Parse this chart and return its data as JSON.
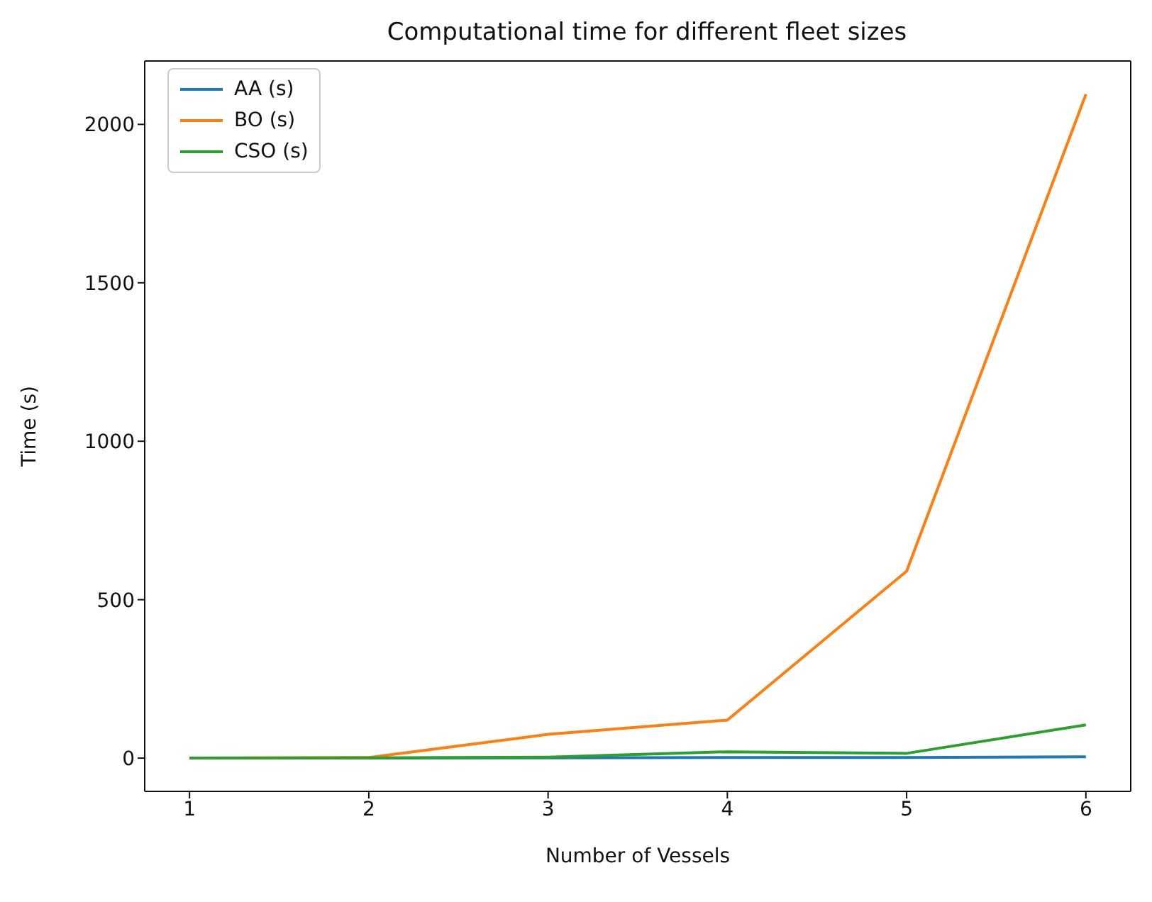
{
  "chart_data": {
    "type": "line",
    "title": "Computational time for different fleet sizes",
    "xlabel": "Number of Vessels",
    "ylabel": "Time (s)",
    "x": [
      1,
      2,
      3,
      4,
      5,
      6
    ],
    "series": [
      {
        "name": "AA (s)",
        "color": "#1f77b4",
        "values": [
          0,
          0,
          1,
          2,
          2,
          4
        ]
      },
      {
        "name": "BO (s)",
        "color": "#ff7f0e",
        "values": [
          0,
          2,
          75,
          120,
          590,
          2095
        ]
      },
      {
        "name": "CSO (s)",
        "color": "#2ca02c",
        "values": [
          0,
          1,
          3,
          20,
          15,
          105
        ]
      }
    ],
    "xlim": [
      0.75,
      6.25
    ],
    "xticks": [
      1,
      2,
      3,
      4,
      5,
      6
    ],
    "ylim": [
      -105,
      2200
    ],
    "yticks": [
      0,
      500,
      1000,
      1500,
      2000
    ],
    "grid": false,
    "legend": "top left",
    "marker": "none",
    "line_style": "solid"
  }
}
